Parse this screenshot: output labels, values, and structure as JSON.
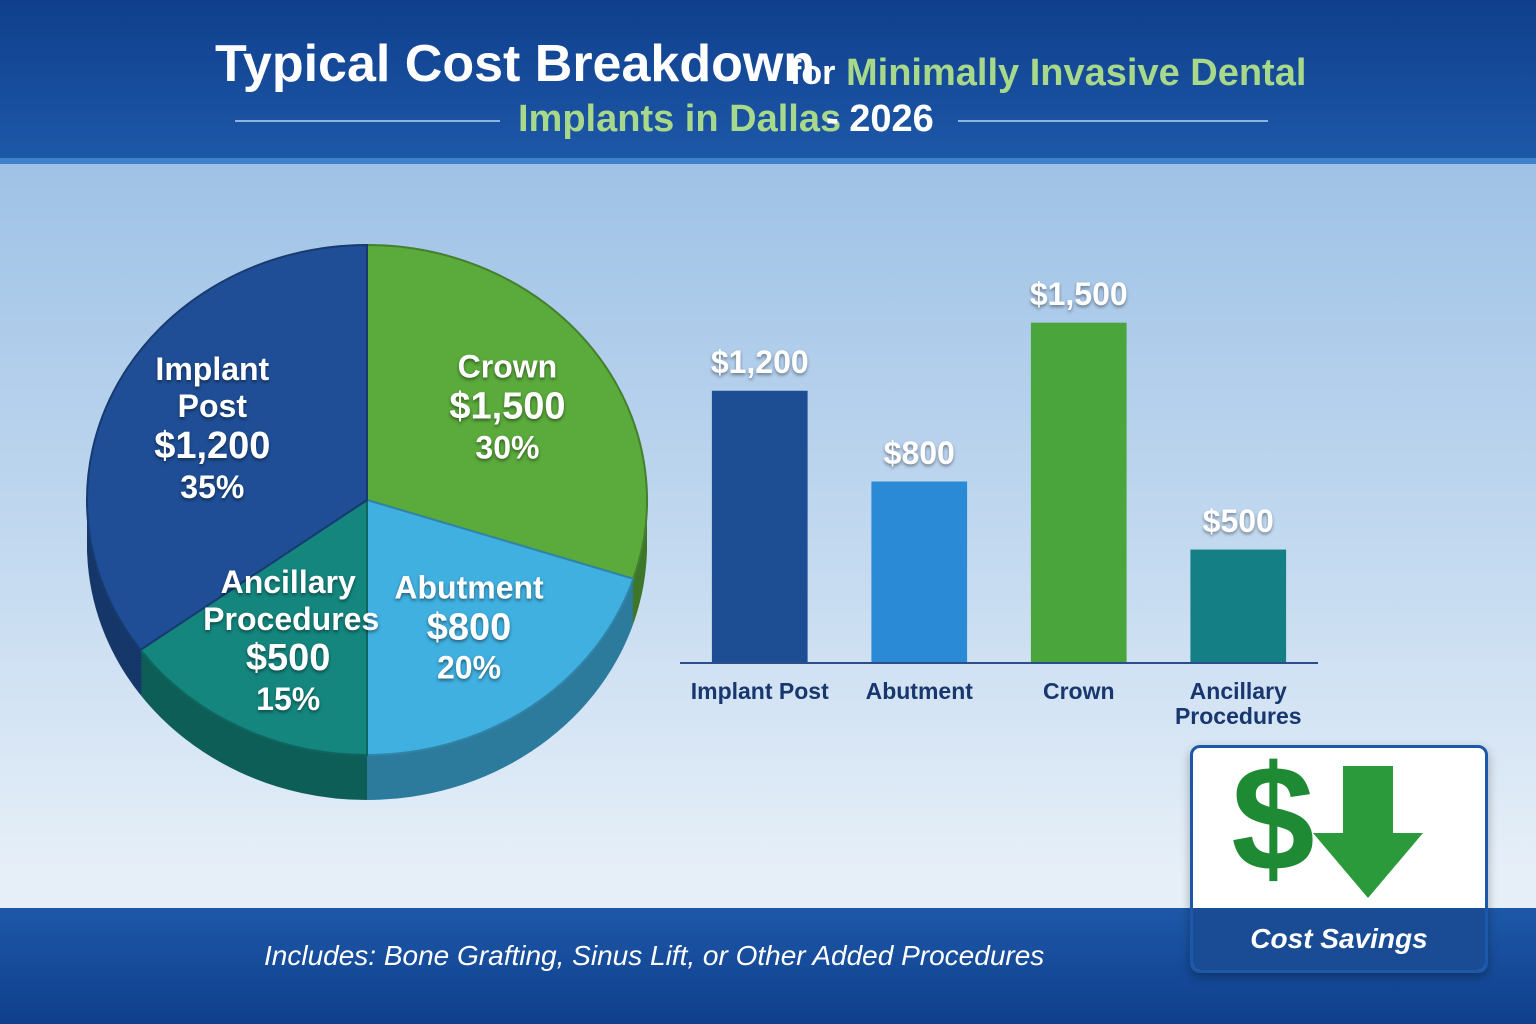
{
  "header": {
    "title_parts": [
      "Typical Cost Breakdown",
      "for",
      "Minimally Invasive Dental",
      "Implants in Dallas",
      "- 2026"
    ]
  },
  "chart_data": [
    {
      "type": "pie",
      "categories": [
        "Crown",
        "Abutment",
        "Ancillary Procedures",
        "Implant Post"
      ],
      "values": [
        30,
        20,
        15,
        35
      ],
      "value_labels": [
        "30%",
        "20%",
        "15%",
        "35%"
      ],
      "amount_labels": [
        "$1,500",
        "$800",
        "$500",
        "$1,200"
      ],
      "colors": [
        "#5aaa3c",
        "#3fb0e0",
        "#14867e",
        "#1f4e96"
      ]
    },
    {
      "type": "bar",
      "categories": [
        "Implant Post",
        "Abutment",
        "Crown",
        "Ancillary Procedures"
      ],
      "values": [
        1200,
        800,
        1500,
        500
      ],
      "value_labels": [
        "$1,200",
        "$800",
        "$1,500",
        "$500"
      ],
      "colors": [
        "#1d4e94",
        "#2b8ad6",
        "#4aa63c",
        "#157f86"
      ],
      "ylim": [
        0,
        1600
      ]
    }
  ],
  "footer": {
    "note": "Includes: Bone Grafting, Sinus Lift, or Other Added Procedures"
  },
  "badge": {
    "label": "Cost Savings"
  }
}
